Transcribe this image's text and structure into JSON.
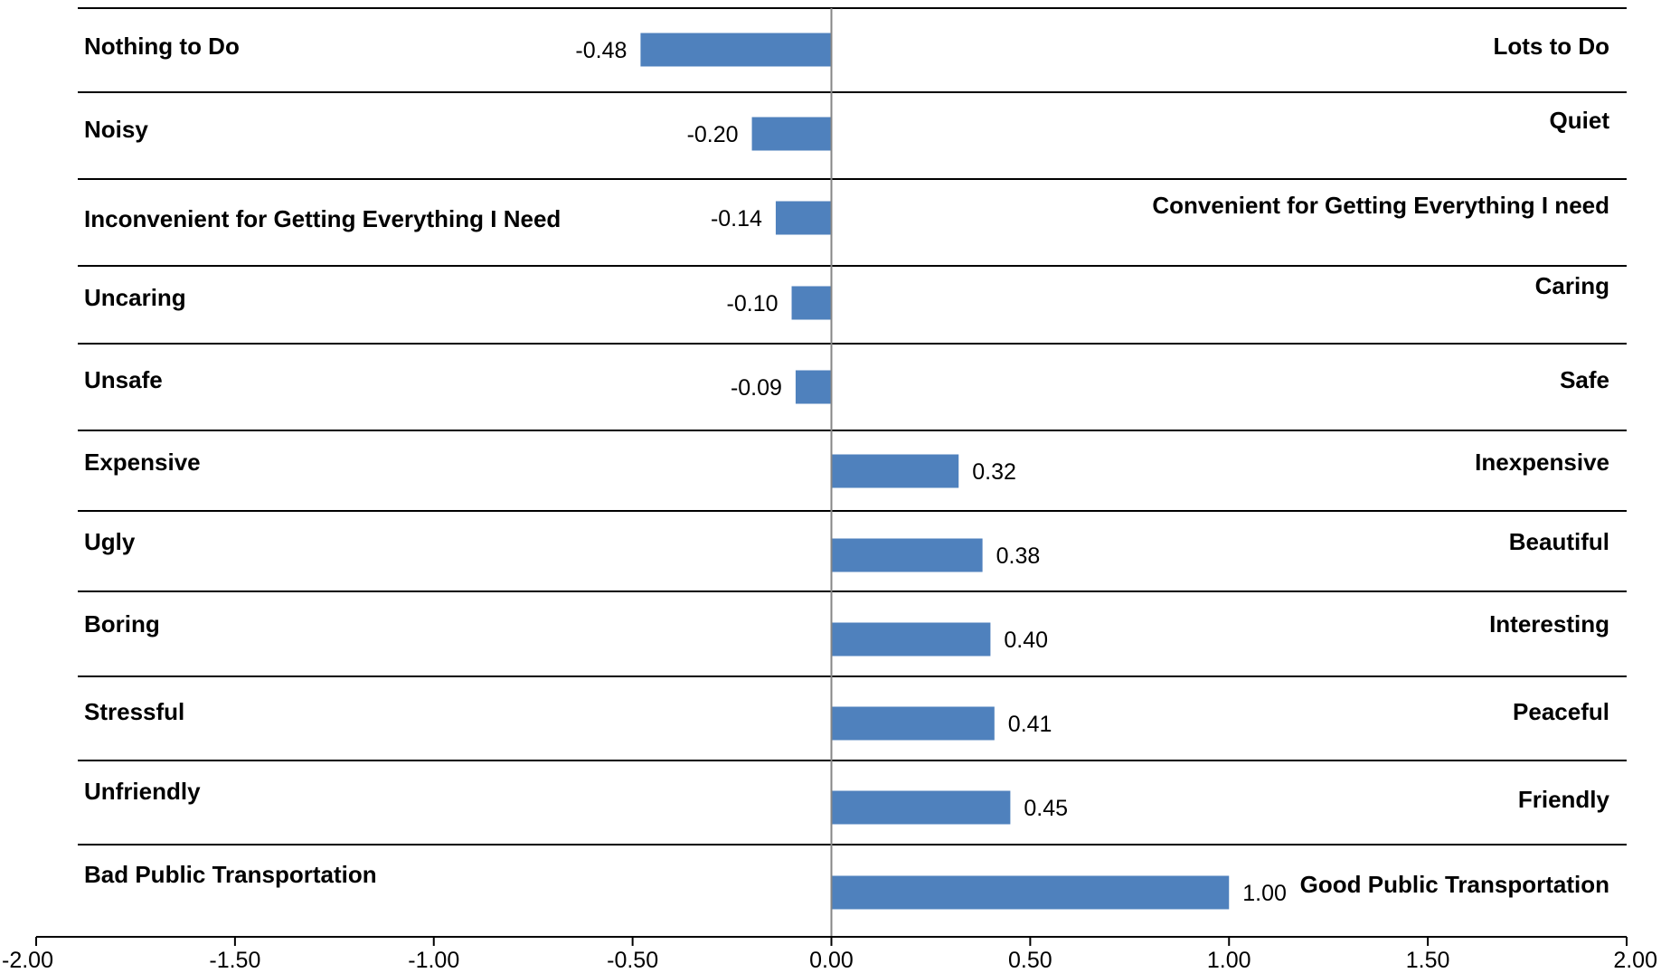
{
  "chart_data": {
    "type": "bar",
    "orientation": "horizontal",
    "categories": [
      {
        "left": "Nothing to Do",
        "right": "Lots to Do"
      },
      {
        "left": "Noisy",
        "right": "Quiet"
      },
      {
        "left": "Inconvenient for Getting Everything I Need",
        "right": "Convenient for Getting Everything I need"
      },
      {
        "left": "Uncaring",
        "right": "Caring"
      },
      {
        "left": "Unsafe",
        "right": "Safe"
      },
      {
        "left": "Expensive",
        "right": "Inexpensive"
      },
      {
        "left": "Ugly",
        "right": "Beautiful"
      },
      {
        "left": "Boring",
        "right": "Interesting"
      },
      {
        "left": "Stressful",
        "right": "Peaceful"
      },
      {
        "left": "Unfriendly",
        "right": "Friendly"
      },
      {
        "left": "Bad Public Transportation",
        "right": "Good Public Transportation"
      }
    ],
    "values": [
      -0.48,
      -0.2,
      -0.14,
      -0.1,
      -0.09,
      0.32,
      0.38,
      0.4,
      0.41,
      0.45,
      1.0
    ],
    "value_labels": [
      "-0.48",
      "-0.20",
      "-0.14",
      "-0.10",
      "-0.09",
      "0.32",
      "0.38",
      "0.40",
      "0.41",
      "0.45",
      "1.00"
    ],
    "xlim": [
      -2.0,
      2.0
    ],
    "x_ticks": [
      -2.0,
      -1.5,
      -1.0,
      -0.5,
      0.0,
      0.5,
      1.0,
      1.5,
      2.0
    ],
    "x_tick_labels": [
      "-2.00",
      "-1.50",
      "-1.00",
      "-0.50",
      "0.00",
      "0.50",
      "1.00",
      "1.50",
      "2.00"
    ],
    "title": "",
    "xlabel": "",
    "ylabel": "",
    "grid": false,
    "legend": "none",
    "colors": {
      "bar": "#4f81bd",
      "lines": "#000000",
      "zero_line": "#868686"
    }
  }
}
